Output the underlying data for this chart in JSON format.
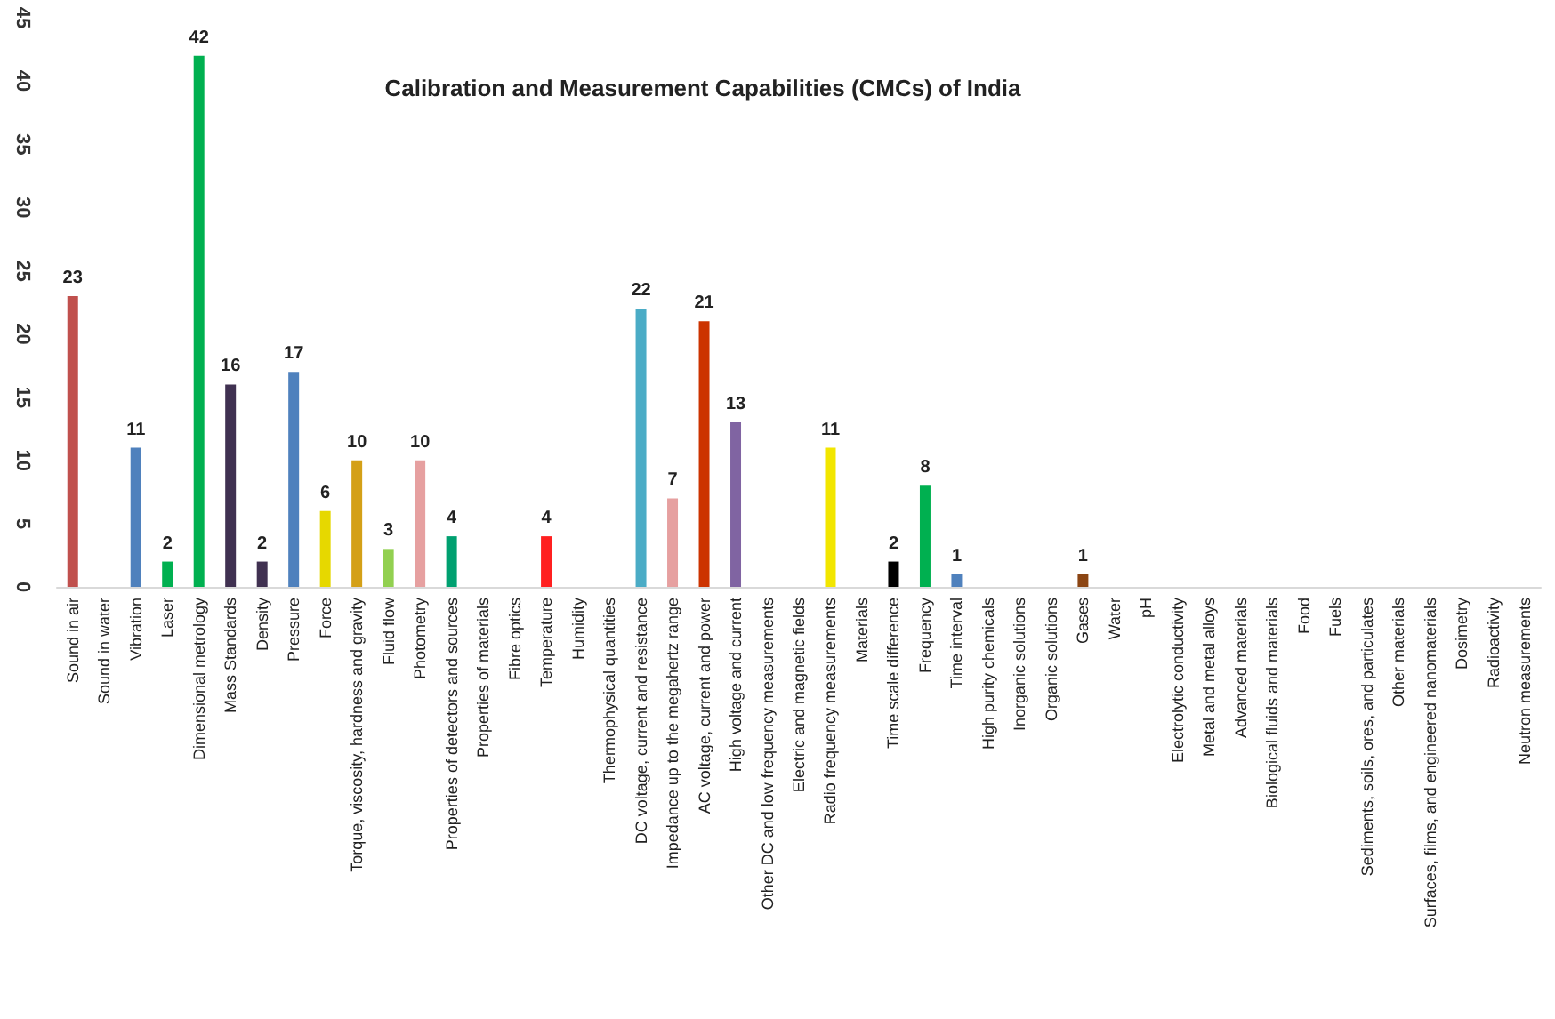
{
  "chart_data": {
    "type": "bar",
    "title": "Calibration and Measurement Capabilities (CMCs) of India",
    "categories": [
      "Sound in air",
      "Sound in water",
      "Vibration",
      "Laser",
      "Dimensional metrology",
      "Mass Standards",
      "Density",
      "Pressure",
      "Force",
      "Torque, viscosity, hardness and gravity",
      "Fluid flow",
      "Photometry",
      "Properties of detectors and sources",
      "Properties of materials",
      "Fibre optics",
      "Temperature",
      "Humidity",
      "Thermophysical quantities",
      "DC voltage, current and resistance",
      "Impedance up to the megahertz range",
      "AC voltage, current and power",
      "High voltage and current",
      "Other DC and low frequency measurements",
      "Electric and magnetic fields",
      "Radio frequency measurements",
      "Materials",
      "Time scale difference",
      "Frequency",
      "Time interval",
      "High purity chemicals",
      "Inorganic solutions",
      "Organic solutions",
      "Gases",
      "Water",
      "pH",
      "Electrolytic conductivity",
      "Metal and metal alloys",
      "Advanced materials",
      "Biological fluids and materials",
      "Food",
      "Fuels",
      "Sediments, soils, ores, and particulates",
      "Other materials",
      "Surfaces, films, and engineered nanomaterials",
      "Dosimetry",
      "Radioactivity",
      "Neutron measurements"
    ],
    "values": [
      23,
      null,
      11,
      2,
      42,
      16,
      2,
      17,
      6,
      10,
      3,
      10,
      4,
      null,
      null,
      4,
      null,
      null,
      22,
      7,
      21,
      13,
      null,
      null,
      11,
      null,
      2,
      8,
      1,
      null,
      null,
      null,
      1,
      null,
      null,
      null,
      null,
      null,
      null,
      null,
      null,
      null,
      null,
      null,
      null,
      null,
      null
    ],
    "colors": [
      "#c0504d",
      null,
      "#4f81bd",
      "#00b050",
      "#00b050",
      "#403151",
      "#403151",
      "#4f81bd",
      "#e6d800",
      "#d4a017",
      "#92d050",
      "#e6a0a0",
      "#00a070",
      null,
      null,
      "#ff2020",
      null,
      null,
      "#4bacc6",
      "#e6a0a0",
      "#cc3300",
      "#8064a2",
      null,
      null,
      "#f2e600",
      null,
      "#000000",
      "#00b050",
      "#4f81bd",
      null,
      null,
      null,
      "#8b4513",
      null,
      null,
      null,
      null,
      null,
      null,
      null,
      null,
      null,
      null,
      null,
      null,
      null,
      null
    ],
    "ylim": [
      0,
      45
    ],
    "yticks": [
      0,
      5,
      10,
      15,
      20,
      25,
      30,
      35,
      40,
      45
    ],
    "data_labels": true,
    "grid": false
  }
}
